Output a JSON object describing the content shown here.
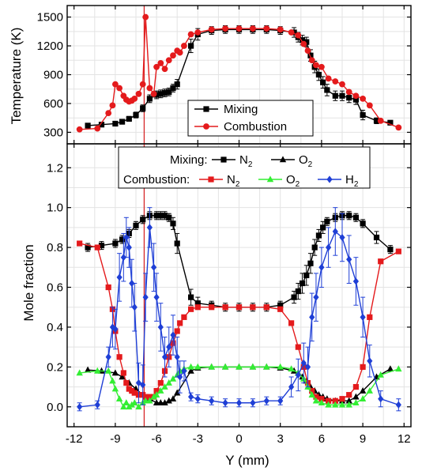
{
  "chart_data": [
    {
      "type": "line",
      "ylabel": "Temperature (K)",
      "xlabel": "",
      "xlim": [
        -12.5,
        12.5
      ],
      "ylim": [
        180,
        1620
      ],
      "yticks": [
        300,
        600,
        900,
        1200,
        1500
      ],
      "xticks": [
        -12,
        -9,
        -6,
        -3,
        0,
        3,
        6,
        9,
        12
      ],
      "grid": true,
      "legend": {
        "position": "bottom-center",
        "items": [
          "Mixing",
          "Combustion"
        ]
      },
      "marker_line": {
        "x": -6.9,
        "color": "#d62728"
      },
      "series": [
        {
          "name": "Mixing",
          "color": "#000000",
          "marker": "square",
          "x": [
            -11,
            -10,
            -9,
            -8.5,
            -8,
            -7.5,
            -7,
            -6.5,
            -6,
            -5.7,
            -5.4,
            -5.1,
            -4.8,
            -4.5,
            -3.5,
            -3,
            -2,
            -1,
            0,
            1,
            2,
            3,
            4,
            4.3,
            4.6,
            4.9,
            5.2,
            5.5,
            5.8,
            6.1,
            6.4,
            7,
            7.5,
            8,
            8.5,
            9,
            10,
            11
          ],
          "y": [
            370,
            380,
            390,
            410,
            440,
            480,
            550,
            650,
            690,
            700,
            710,
            720,
            760,
            800,
            1200,
            1320,
            1360,
            1370,
            1370,
            1370,
            1370,
            1360,
            1340,
            1290,
            1260,
            1240,
            1100,
            980,
            900,
            820,
            740,
            680,
            680,
            660,
            640,
            480,
            420,
            400
          ],
          "err": [
            20,
            20,
            20,
            25,
            25,
            30,
            35,
            40,
            40,
            40,
            40,
            40,
            40,
            50,
            70,
            60,
            40,
            40,
            40,
            40,
            40,
            40,
            50,
            50,
            50,
            50,
            60,
            60,
            60,
            60,
            60,
            50,
            50,
            50,
            50,
            50,
            30,
            20
          ]
        },
        {
          "name": "Combustion",
          "color": "#e41a1c",
          "marker": "circle",
          "x": [
            -11.6,
            -10.3,
            -9.5,
            -9.2,
            -9.0,
            -8.7,
            -8.4,
            -8.2,
            -8.0,
            -7.8,
            -7.6,
            -7.3,
            -7.0,
            -6.8,
            -6.5,
            -6.2,
            -6.0,
            -5.7,
            -5.4,
            -5.1,
            -4.8,
            -4.5,
            -4.3,
            -4.0,
            -3.5,
            -3,
            -2,
            -1,
            0,
            1,
            2,
            3,
            3.8,
            4.3,
            4.7,
            5.0,
            5.3,
            5.6,
            6.0,
            6.5,
            7.0,
            7.5,
            8.0,
            8.5,
            9.0,
            9.5,
            10.3,
            11.6
          ],
          "y": [
            330,
            340,
            500,
            580,
            800,
            760,
            680,
            640,
            620,
            630,
            650,
            700,
            800,
            1500,
            760,
            700,
            980,
            1020,
            960,
            1050,
            1100,
            1150,
            1130,
            1200,
            1320,
            1340,
            1370,
            1380,
            1380,
            1380,
            1380,
            1370,
            1340,
            1310,
            1220,
            1150,
            1050,
            1000,
            980,
            860,
            830,
            800,
            720,
            680,
            650,
            580,
            420,
            350
          ]
        }
      ]
    },
    {
      "type": "line",
      "ylabel": "Mole fraction",
      "xlabel": "Y (mm)",
      "xlim": [
        -12.5,
        12.5
      ],
      "ylim": [
        -0.1,
        1.32
      ],
      "yticks": [
        "0.0",
        "0.2",
        "0.4",
        "0.6",
        "0.8",
        "1.0",
        "1.2"
      ],
      "xticks": [
        "-12",
        "-9",
        "-6",
        "-3",
        "0",
        "3",
        "6",
        "9",
        "12"
      ],
      "grid": true,
      "legend": {
        "position": "top-center",
        "row1_title": "Mixing:",
        "row2_title": "Combustion:",
        "items": [
          {
            "label": "N",
            "sub": "2",
            "color": "#000000",
            "marker": "square"
          },
          {
            "label": "O",
            "sub": "2",
            "color": "#000000",
            "marker": "triangle"
          },
          {
            "label": "N",
            "sub": "2",
            "color": "#e41a1c",
            "marker": "square"
          },
          {
            "label": "O",
            "sub": "2",
            "color": "#33ee33",
            "marker": "triangle"
          },
          {
            "label": "H",
            "sub": "2",
            "color": "#1f3fd6",
            "marker": "diamond"
          }
        ]
      },
      "marker_line": {
        "x": -6.9,
        "color": "#d62728"
      },
      "series": [
        {
          "name": "Mixing N2",
          "color": "#000000",
          "marker": "square",
          "x": [
            -11,
            -10,
            -9,
            -8.5,
            -8,
            -7.5,
            -7,
            -6.5,
            -6,
            -5.7,
            -5.4,
            -5.1,
            -4.8,
            -4.5,
            -3.5,
            -3,
            -2,
            -1,
            0,
            1,
            2,
            3,
            4,
            4.3,
            4.6,
            4.9,
            5.2,
            5.5,
            5.8,
            6.1,
            6.4,
            7,
            7.5,
            8,
            8.5,
            9,
            10,
            11
          ],
          "y": [
            0.8,
            0.81,
            0.82,
            0.84,
            0.87,
            0.91,
            0.94,
            0.96,
            0.96,
            0.96,
            0.96,
            0.95,
            0.92,
            0.82,
            0.55,
            0.52,
            0.51,
            0.5,
            0.5,
            0.5,
            0.5,
            0.51,
            0.55,
            0.58,
            0.62,
            0.66,
            0.72,
            0.8,
            0.86,
            0.9,
            0.93,
            0.95,
            0.96,
            0.96,
            0.95,
            0.92,
            0.85,
            0.79
          ],
          "err": [
            0.02,
            0.02,
            0.02,
            0.02,
            0.02,
            0.02,
            0.02,
            0.02,
            0.02,
            0.02,
            0.02,
            0.02,
            0.03,
            0.05,
            0.04,
            0.03,
            0.02,
            0.02,
            0.02,
            0.02,
            0.02,
            0.02,
            0.03,
            0.04,
            0.05,
            0.05,
            0.05,
            0.04,
            0.03,
            0.03,
            0.02,
            0.02,
            0.02,
            0.02,
            0.02,
            0.02,
            0.03,
            0.02
          ]
        },
        {
          "name": "Mixing O2",
          "color": "#000000",
          "marker": "triangle",
          "x": [
            -11,
            -10,
            -9,
            -8.5,
            -8,
            -7.5,
            -7,
            -6.5,
            -6,
            -5.7,
            -5.4,
            -5.1,
            -4.8,
            -4.5,
            -3.5,
            -3,
            -2,
            -1,
            0,
            1,
            2,
            3,
            4,
            4.3,
            4.6,
            4.9,
            5.2,
            5.5,
            5.8,
            6.1,
            6.4,
            7,
            7.5,
            8,
            8.5,
            9,
            10,
            11
          ],
          "y": [
            0.185,
            0.18,
            0.17,
            0.15,
            0.12,
            0.09,
            0.06,
            0.04,
            0.02,
            0.02,
            0.02,
            0.03,
            0.04,
            0.07,
            0.18,
            0.195,
            0.2,
            0.2,
            0.2,
            0.2,
            0.2,
            0.195,
            0.18,
            0.17,
            0.15,
            0.13,
            0.1,
            0.08,
            0.06,
            0.05,
            0.04,
            0.03,
            0.03,
            0.03,
            0.05,
            0.08,
            0.15,
            0.19
          ]
        },
        {
          "name": "Combustion N2",
          "color": "#e41a1c",
          "marker": "square",
          "x": [
            -11.6,
            -10.3,
            -9.5,
            -9.2,
            -9.0,
            -8.7,
            -8.4,
            -8.2,
            -8.0,
            -7.8,
            -7.6,
            -7.3,
            -7.0,
            -6.8,
            -6.5,
            -6.2,
            -6.0,
            -5.7,
            -5.4,
            -5.1,
            -4.8,
            -4.5,
            -4.3,
            -4.0,
            -3.5,
            -3,
            -2,
            -1,
            0,
            1,
            2,
            3,
            3.8,
            4.3,
            4.7,
            5.0,
            5.3,
            5.6,
            6.0,
            6.5,
            7.0,
            7.5,
            8.0,
            8.5,
            9.0,
            9.5,
            10.3,
            11.6
          ],
          "y": [
            0.82,
            0.8,
            0.6,
            0.49,
            0.38,
            0.25,
            0.17,
            0.12,
            0.09,
            0.08,
            0.07,
            0.06,
            0.06,
            0.05,
            0.05,
            0.05,
            0.08,
            0.12,
            0.18,
            0.25,
            0.32,
            0.38,
            0.42,
            0.45,
            0.49,
            0.5,
            0.5,
            0.5,
            0.5,
            0.5,
            0.5,
            0.49,
            0.42,
            0.3,
            0.2,
            0.12,
            0.08,
            0.05,
            0.04,
            0.03,
            0.03,
            0.04,
            0.06,
            0.1,
            0.2,
            0.45,
            0.73,
            0.78
          ]
        },
        {
          "name": "Combustion O2",
          "color": "#33ee33",
          "marker": "triangle",
          "x": [
            -11.6,
            -10.3,
            -9.5,
            -9.2,
            -9.0,
            -8.7,
            -8.4,
            -8.2,
            -8.0,
            -7.8,
            -7.6,
            -7.3,
            -7.0,
            -6.8,
            -6.5,
            -6.2,
            -6.0,
            -5.7,
            -5.4,
            -5.1,
            -4.8,
            -4.5,
            -4.3,
            -4.0,
            -3.5,
            -3,
            -2,
            -1,
            0,
            1,
            2,
            3,
            3.8,
            4.3,
            4.7,
            5.0,
            5.3,
            5.6,
            6.0,
            6.5,
            7.0,
            7.5,
            8.0,
            8.5,
            9.0,
            9.5,
            10.3,
            11.6
          ],
          "y": [
            0.17,
            0.18,
            0.18,
            0.13,
            0.09,
            0.04,
            0.0,
            0.02,
            0.0,
            0.01,
            0.02,
            0.0,
            0.02,
            0.03,
            0.03,
            0.05,
            0.06,
            0.08,
            0.1,
            0.12,
            0.14,
            0.16,
            0.18,
            0.19,
            0.2,
            0.2,
            0.2,
            0.2,
            0.2,
            0.2,
            0.2,
            0.2,
            0.19,
            0.17,
            0.14,
            0.1,
            0.06,
            0.03,
            0.02,
            0.01,
            0.01,
            0.01,
            0.01,
            0.02,
            0.04,
            0.08,
            0.16,
            0.19
          ]
        },
        {
          "name": "Combustion H2",
          "color": "#1f3fd6",
          "marker": "diamond",
          "x": [
            -11.6,
            -10.3,
            -9.5,
            -9.2,
            -9.0,
            -8.7,
            -8.4,
            -8.2,
            -8.0,
            -7.8,
            -7.6,
            -7.3,
            -7.0,
            -6.8,
            -6.5,
            -6.2,
            -6.0,
            -5.7,
            -5.4,
            -5.1,
            -4.8,
            -4.5,
            -4.3,
            -4.0,
            -3.5,
            -3,
            -2,
            -1,
            0,
            1,
            2,
            3,
            3.8,
            4.3,
            4.7,
            5.0,
            5.3,
            5.6,
            6.0,
            6.5,
            7.0,
            7.5,
            8.0,
            8.5,
            9.0,
            9.5,
            10.3,
            11.6
          ],
          "y": [
            0.0,
            0.01,
            0.25,
            0.4,
            0.39,
            0.65,
            0.75,
            0.85,
            0.8,
            0.62,
            0.5,
            0.12,
            0.11,
            0.55,
            0.9,
            0.7,
            0.55,
            0.4,
            0.25,
            0.3,
            0.36,
            0.25,
            0.15,
            0.18,
            0.05,
            0.04,
            0.03,
            0.02,
            0.02,
            0.02,
            0.03,
            0.03,
            0.1,
            0.16,
            0.22,
            0.2,
            0.45,
            0.55,
            0.7,
            0.8,
            0.88,
            0.85,
            0.74,
            0.63,
            0.45,
            0.23,
            0.04,
            0.01
          ],
          "err": [
            0.02,
            0.02,
            0.05,
            0.1,
            0.1,
            0.12,
            0.12,
            0.1,
            0.1,
            0.12,
            0.12,
            0.1,
            0.1,
            0.12,
            0.1,
            0.12,
            0.12,
            0.12,
            0.1,
            0.1,
            0.1,
            0.1,
            0.08,
            0.05,
            0.02,
            0.02,
            0.02,
            0.02,
            0.02,
            0.02,
            0.02,
            0.02,
            0.05,
            0.08,
            0.1,
            0.1,
            0.12,
            0.12,
            0.1,
            0.1,
            0.12,
            0.12,
            0.12,
            0.12,
            0.1,
            0.08,
            0.04,
            0.03
          ]
        }
      ]
    }
  ]
}
